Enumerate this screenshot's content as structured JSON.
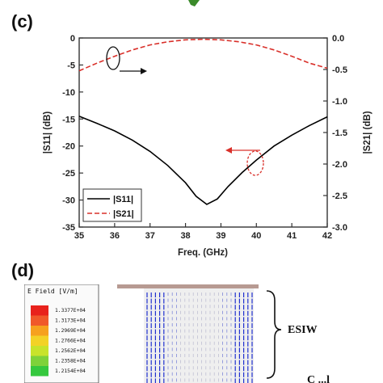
{
  "chart_data": {
    "type": "line",
    "panel_label": "(c)",
    "xlabel": "Freq. (GHz)",
    "ylabel_left": "|S11| (dB)",
    "ylabel_right": "|S21| (dB)",
    "xlim": [
      35,
      42
    ],
    "ylim_left": [
      -35,
      0
    ],
    "ylim_right": [
      -3.0,
      0.0
    ],
    "x_ticks": [
      "35",
      "36",
      "37",
      "38",
      "39",
      "40",
      "41",
      "42"
    ],
    "y_ticks_left": [
      "0",
      "-5",
      "-10",
      "-15",
      "-20",
      "-25",
      "-30",
      "-35"
    ],
    "y_ticks_right": [
      "0.0",
      "-0.5",
      "-1.0",
      "-1.5",
      "-2.0",
      "-2.5",
      "-3.0"
    ],
    "legend_position": "bottom-left",
    "series": [
      {
        "name": "|S11|",
        "axis": "left",
        "color": "#000000",
        "style": "solid",
        "x": [
          35,
          35.5,
          36,
          36.5,
          37,
          37.5,
          38,
          38.3,
          38.6,
          38.9,
          39.2,
          39.6,
          40,
          40.5,
          41,
          41.5,
          42
        ],
        "y": [
          -14.5,
          -15.8,
          -17.2,
          -18.9,
          -21.0,
          -23.6,
          -26.8,
          -29.3,
          -30.8,
          -29.8,
          -27.5,
          -24.9,
          -22.6,
          -20.0,
          -18.0,
          -16.2,
          -14.6
        ]
      },
      {
        "name": "|S21|",
        "axis": "right",
        "color": "#d9302a",
        "style": "dashed",
        "x": [
          35,
          35.5,
          36,
          36.5,
          37,
          37.5,
          38,
          38.5,
          39,
          39.5,
          40,
          40.5,
          41,
          41.5,
          42
        ],
        "y": [
          -0.52,
          -0.4,
          -0.29,
          -0.19,
          -0.11,
          -0.06,
          -0.03,
          -0.02,
          -0.03,
          -0.06,
          -0.11,
          -0.19,
          -0.29,
          -0.4,
          -0.48
        ]
      }
    ]
  },
  "panel_d": {
    "panel_label": "(d)",
    "legend_title": "E Field [V/m]",
    "legend_values": [
      "1.3377E+04",
      "1.3173E+04",
      "1.2969E+04",
      "1.2766E+04",
      "1.2562E+04",
      "1.2358E+04",
      "1.2154E+04"
    ],
    "legend_colors": [
      "#e8221c",
      "#f0592a",
      "#f6a11e",
      "#f3d226",
      "#c8e32b",
      "#7ed23a",
      "#35c83e"
    ],
    "region_label": "ESIW",
    "partial_label": "C  ...l"
  }
}
